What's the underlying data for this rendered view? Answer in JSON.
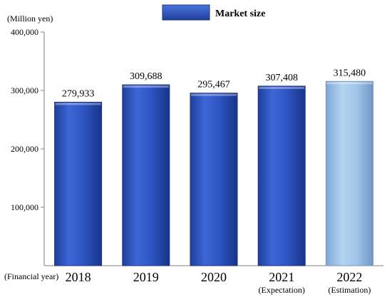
{
  "chart_data": {
    "type": "bar",
    "y_unit_label": "(Million yen)",
    "x_unit_label": "(Financial year)",
    "categories": [
      "2018",
      "2019",
      "2020",
      "2021",
      "2022"
    ],
    "category_notes": [
      "",
      "",
      "",
      "(Expectation)",
      "(Estimation)"
    ],
    "series": [
      {
        "name": "Market size",
        "values": [
          279933,
          309688,
          295467,
          307408,
          315480
        ],
        "value_labels": [
          "279,933",
          "309,688",
          "295,467",
          "307,408",
          "315,480"
        ]
      }
    ],
    "ylim": [
      0,
      400000
    ],
    "yticks": [
      100000,
      200000,
      300000,
      400000
    ],
    "ytick_labels": [
      "100,000",
      "200,000",
      "300,000",
      "400,000"
    ],
    "legend_position": "top-center",
    "grid": false,
    "colors": {
      "actual_bar": "#2f54c6",
      "estimated_bar": "#9ec4e6"
    }
  }
}
